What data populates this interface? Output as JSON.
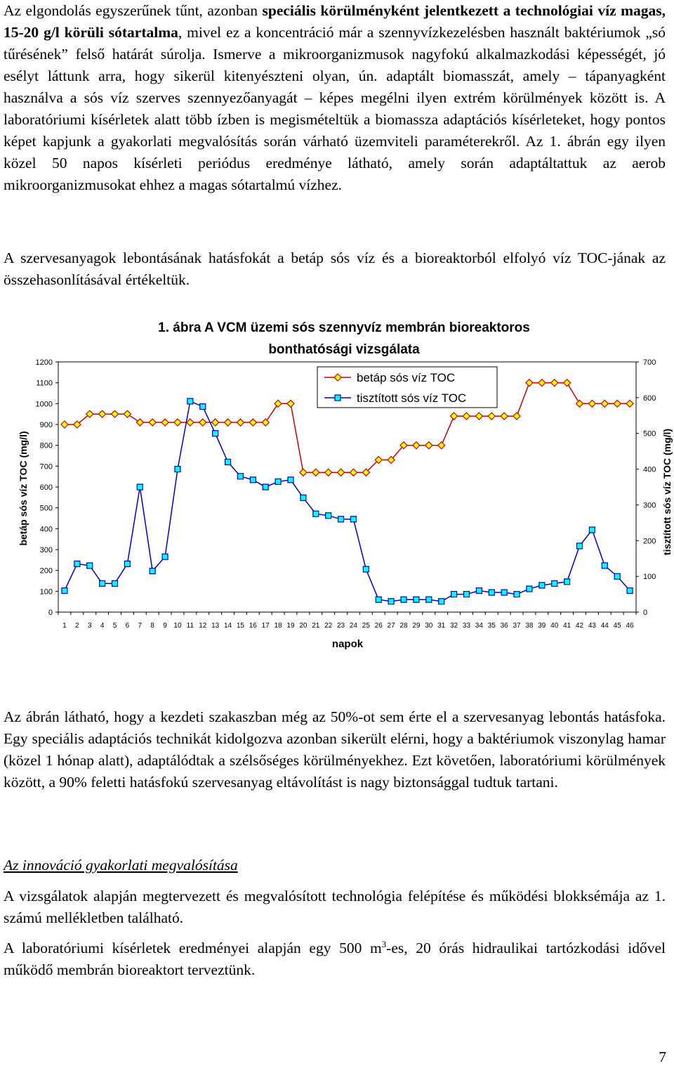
{
  "paragraphs": {
    "p1": {
      "a": "Az elgondolás egyszerűnek tűnt, azonban ",
      "b": "speciális körülményként jelentkezett a technológiai víz magas, 15-20 g/l körüli sótartalma",
      "c": ", mivel ez a koncentráció már a szennyvízkezelésben használt baktériumok „só tűrésének” felső határát súrolja. Ismerve a mikroorganizmusok nagyfokú alkalmazkodási képességét, jó esélyt láttunk arra, hogy sikerül kitenyészteni olyan, ún. adaptált biomasszát, amely – tápanyagként használva a sós víz szerves szennyezőanyagát – képes megélni ilyen extrém körülmények között is. A laboratóriumi kísérletek alatt több ízben is megismételtük a biomassza adaptációs kísérleteket, hogy pontos képet kapjunk a gyakorlati megvalósítás során várható üzemviteli paraméterekről. Az 1. ábrán egy ilyen közel 50 napos kísérleti periódus eredménye látható, amely során adaptáltattuk az aerob mikroorganizmusokat ehhez a magas sótartalmú vízhez."
    },
    "p2": "A szervesanyagok lebontásának hatásfokát a betáp sós víz és a bioreaktorból elfolyó víz TOC-jának az összehasonlításával értékeltük.",
    "p3": "Az ábrán látható, hogy a kezdeti szakaszban még az 50%-ot sem érte el a szervesanyag lebontás hatásfoka. Egy speciális adaptációs technikát kidolgozva azonban sikerült elérni, hogy a baktériumok viszonylag hamar (közel 1 hónap alatt), adaptálódtak a szélsőséges körülményekhez. Ezt követően, laboratóriumi körülmények között, a 90% feletti hatásfokú szervesanyag eltávolítást is nagy biztonsággal tudtuk tartani.",
    "heading_innovation": "Az innováció gyakorlati megvalósítása",
    "p4": "A vizsgálatok alapján megtervezett és megvalósított technológia felépítése és működési blokksémája az 1. számú mellékletben található.",
    "p5": {
      "before": "A laboratóriumi kísérletek eredményei alapján egy 500 m",
      "sup": "3",
      "after": "-es, 20 órás hidraulikai tartózkodási idővel működő membrán bioreaktort terveztünk."
    }
  },
  "page_number": "7",
  "chart_data": {
    "type": "line",
    "title_line1": "1. ábra A VCM üzemi sós szennyvíz membrán bioreaktoros",
    "title_line2": "bonthatósági vizsgálata",
    "xlabel": "napok",
    "ylabel_left": "betáp sós víz TOC (mg/l)",
    "ylabel_right": "tisztított sós víz TOC (mg/l)",
    "ylim_left": [
      0,
      1200
    ],
    "ylim_right": [
      0,
      700
    ],
    "y_ticks_left": [
      "0",
      "100",
      "200",
      "300",
      "400",
      "500",
      "600",
      "700",
      "800",
      "900",
      "1000",
      "1100",
      "1200"
    ],
    "y_ticks_right": [
      "0",
      "100",
      "200",
      "300",
      "400",
      "500",
      "600",
      "700"
    ],
    "x": [
      1,
      2,
      3,
      4,
      5,
      6,
      7,
      8,
      9,
      10,
      11,
      12,
      13,
      14,
      15,
      16,
      17,
      18,
      19,
      20,
      21,
      22,
      23,
      24,
      25,
      26,
      27,
      28,
      29,
      30,
      31,
      32,
      33,
      34,
      35,
      36,
      37,
      38,
      39,
      40,
      41,
      42,
      43,
      44,
      45,
      46
    ],
    "series": [
      {
        "name": "betáp sós víz TOC",
        "axis": "left",
        "color": "#cc0000",
        "marker_fill": "#ffff00",
        "marker": "diamond",
        "values": [
          900,
          900,
          950,
          950,
          950,
          950,
          910,
          910,
          910,
          910,
          910,
          910,
          910,
          910,
          910,
          910,
          910,
          1000,
          1000,
          670,
          670,
          670,
          670,
          670,
          670,
          730,
          730,
          800,
          800,
          800,
          800,
          940,
          940,
          940,
          940,
          940,
          940,
          1100,
          1100,
          1100,
          1100,
          1000,
          1000,
          1000,
          1000,
          1000
        ]
      },
      {
        "name": "tisztított sós víz TOC",
        "axis": "right",
        "color": "#0000cc",
        "marker_fill": "#00ffff",
        "marker": "square",
        "values": [
          60,
          135,
          130,
          80,
          80,
          135,
          350,
          115,
          155,
          400,
          590,
          575,
          500,
          420,
          380,
          370,
          350,
          365,
          370,
          320,
          275,
          270,
          260,
          260,
          120,
          35,
          30,
          35,
          35,
          35,
          30,
          50,
          50,
          60,
          55,
          55,
          50,
          65,
          75,
          80,
          85,
          185,
          230,
          130,
          100,
          60
        ]
      }
    ]
  }
}
